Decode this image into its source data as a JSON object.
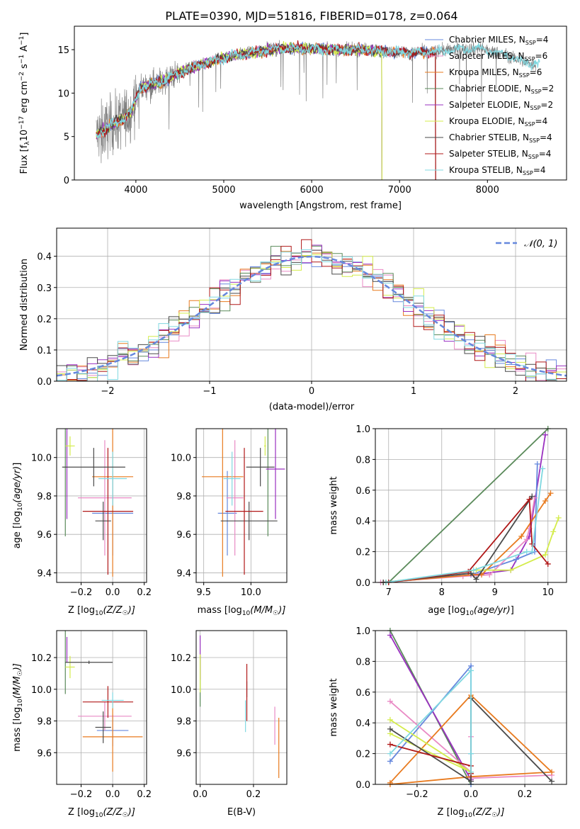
{
  "figure_title": "PLATE=0390, MJD=51816, FIBERID=0178, z=0.064",
  "colors": {
    "Chabrier MILES": "#6688dd",
    "Salpeter MILES": "#e98ac5",
    "Kroupa MILES": "#e87a1e",
    "Chabrier ELODIE": "#5a8a5a",
    "Salpeter ELODIE": "#9a30c0",
    "Kroupa ELODIE": "#d4ec4c",
    "Chabrier STELIB": "#4a4a4a",
    "Salpeter STELIB": "#b01818",
    "Kroupa STELIB": "#80d8e0",
    "data": "#808080",
    "grid": "#b0b0b0"
  },
  "chart_data": [
    {
      "id": "spectrum",
      "type": "line",
      "title": "PLATE=0390, MJD=51816, FIBERID=0178, z=0.064",
      "xlabel": "wavelength [Angstrom, rest frame]",
      "ylabel": "Flux [f_λ 10^-17 erg cm^-2 s^-1 A^-1]",
      "xlim": [
        3300,
        8900
      ],
      "ylim": [
        0,
        17.7
      ],
      "xticks": [
        "4000",
        "5000",
        "6000",
        "7000",
        "8000"
      ],
      "yticks": [
        "0",
        "5",
        "10",
        "15"
      ],
      "grid": false,
      "legend_position": "right",
      "legend": [
        {
          "name": "Chabrier MILES, N_SSP=4",
          "label": "Chabrier MILES, N",
          "sub": "SSP",
          "n": "=4"
        },
        {
          "name": "Salpeter MILES, N_SSP=6",
          "label": "Salpeter MILES, N",
          "sub": "SSP",
          "n": "=6"
        },
        {
          "name": "Kroupa MILES, N_SSP=6",
          "label": "Kroupa MILES, N",
          "sub": "SSP",
          "n": "=6"
        },
        {
          "name": "Chabrier ELODIE, N_SSP=2",
          "label": "Chabrier ELODIE, N",
          "sub": "SSP",
          "n": "=2"
        },
        {
          "name": "Salpeter ELODIE, N_SSP=2",
          "label": "Salpeter ELODIE, N",
          "sub": "SSP",
          "n": "=2"
        },
        {
          "name": "Kroupa ELODIE, N_SSP=4",
          "label": "Kroupa ELODIE, N",
          "sub": "SSP",
          "n": "=4"
        },
        {
          "name": "Chabrier STELIB, N_SSP=4",
          "label": "Chabrier STELIB, N",
          "sub": "SSP",
          "n": "=4"
        },
        {
          "name": "Salpeter STELIB, N_SSP=4",
          "label": "Salpeter STELIB, N",
          "sub": "SSP",
          "n": "=4"
        },
        {
          "name": "Kroupa STELIB, N_SSP=4",
          "label": "Kroupa STELIB, N",
          "sub": "SSP",
          "n": "=4"
        }
      ],
      "continuum": [
        [
          3550,
          5.2
        ],
        [
          3700,
          6.2
        ],
        [
          3850,
          7.0
        ],
        [
          3950,
          8.0
        ],
        [
          4050,
          10.6
        ],
        [
          4300,
          11.4
        ],
        [
          4600,
          12.8
        ],
        [
          4850,
          13.6
        ],
        [
          5100,
          14.3
        ],
        [
          5400,
          14.8
        ],
        [
          5700,
          15.2
        ],
        [
          6000,
          15.1
        ],
        [
          6300,
          15.0
        ],
        [
          6600,
          15.0
        ],
        [
          7000,
          14.7
        ],
        [
          7300,
          14.7
        ],
        [
          7600,
          15.0
        ],
        [
          7900,
          15.2
        ],
        [
          8200,
          14.4
        ],
        [
          8500,
          13.3
        ]
      ],
      "model_ranges": {
        "Chabrier MILES": [
          3550,
          7410
        ],
        "Salpeter MILES": [
          3550,
          7410
        ],
        "Kroupa MILES": [
          3550,
          7410
        ],
        "Chabrier ELODIE": [
          3550,
          6800
        ],
        "Salpeter ELODIE": [
          3550,
          6800
        ],
        "Kroupa ELODIE": [
          3550,
          6800
        ],
        "Chabrier STELIB": [
          3550,
          7410
        ],
        "Salpeter STELIB": [
          3550,
          7410
        ],
        "Kroupa STELIB": [
          3550,
          8600
        ]
      }
    },
    {
      "id": "residual_histogram",
      "type": "histogram",
      "xlabel": "(data-model)/error",
      "ylabel": "Normed distribution",
      "xlim": [
        -2.5,
        2.5
      ],
      "ylim": [
        0,
        0.49
      ],
      "xticks": [
        "−2",
        "−1",
        "0",
        "1",
        "2"
      ],
      "yticks": [
        "0.0",
        "0.1",
        "0.2",
        "0.3",
        "0.4"
      ],
      "grid": true,
      "bin_width": 0.1,
      "reference_curve": {
        "name": "N(0,1)",
        "mu": 0,
        "sigma": 1,
        "legend_label": "𝒩(0, 1)",
        "legend_position": "top-right"
      }
    },
    {
      "id": "age_vs_Z",
      "type": "scatter_errorbar",
      "xlabel": "Z [log10(Z/Z☉)]",
      "ylabel": "age  [log10(age/yr)]",
      "xlim": [
        -0.355,
        0.215
      ],
      "ylim": [
        9.35,
        10.15
      ],
      "xticks": [
        -0.2,
        0.0,
        0.2
      ],
      "xticklabels": [
        "−0.2",
        "0.0",
        "0.2"
      ],
      "yticks": [
        9.4,
        9.6,
        9.8,
        10.0
      ],
      "yticklabels": [
        "9.4",
        "9.6",
        "9.8",
        "10.0"
      ],
      "grid": true,
      "points": [
        {
          "model": "Chabrier MILES",
          "x": 0.0,
          "xerr": 0.13,
          "y": 9.71,
          "yerr": 0.22
        },
        {
          "model": "Salpeter MILES",
          "x": -0.05,
          "xerr": 0.17,
          "y": 9.79,
          "yerr": 0.3
        },
        {
          "model": "Kroupa MILES",
          "x": 0.0,
          "xerr": 0.13,
          "y": 9.9,
          "yerr": 0.52
        },
        {
          "model": "Chabrier ELODIE",
          "x": -0.3,
          "xerr": 0.0,
          "y": 9.94,
          "yerr": 0.35
        },
        {
          "model": "Salpeter ELODIE",
          "x": -0.29,
          "xerr": 0.0,
          "y": 9.94,
          "yerr": 0.26
        },
        {
          "model": "Kroupa ELODIE",
          "x": -0.27,
          "xerr": 0.03,
          "y": 10.06,
          "yerr": 0.05
        },
        {
          "model": "Chabrier STELIB",
          "x": -0.06,
          "xerr": 0.05,
          "y": 9.67,
          "yerr": 0.1
        },
        {
          "model": "Salpeter STELIB",
          "x": -0.03,
          "xerr": 0.16,
          "y": 9.72,
          "yerr": 0.33
        },
        {
          "model": "Kroupa STELIB",
          "x": 0.0,
          "xerr": 0.09,
          "y": 9.89,
          "yerr": 0.14
        },
        {
          "model": "Chabrier STELIB",
          "x": -0.12,
          "xerr": 0.2,
          "y": 9.95,
          "yerr": 0.1
        }
      ]
    },
    {
      "id": "age_vs_mass",
      "type": "scatter_errorbar",
      "xlabel": "mass [log10(M/M☉)]",
      "ylabel": "",
      "xlim": [
        9.42,
        10.38
      ],
      "ylim": [
        9.35,
        10.15
      ],
      "xticks": [
        9.5,
        10.0
      ],
      "xticklabels": [
        "9.5",
        "10.0"
      ],
      "yticks": [
        9.4,
        9.6,
        9.8,
        10.0
      ],
      "yticklabels": [
        "9.4",
        "9.6",
        "9.8",
        "10.0"
      ],
      "grid": true,
      "points": [
        {
          "model": "Chabrier MILES",
          "x": 9.75,
          "xerr": 0.1,
          "y": 9.71,
          "yerr": 0.22
        },
        {
          "model": "Salpeter MILES",
          "x": 9.83,
          "xerr": 0.09,
          "y": 9.79,
          "yerr": 0.3
        },
        {
          "model": "Kroupa MILES",
          "x": 9.7,
          "xerr": 0.22,
          "y": 9.9,
          "yerr": 0.52
        },
        {
          "model": "Chabrier ELODIE",
          "x": 10.18,
          "xerr": 0.0,
          "y": 9.94,
          "yerr": 0.35
        },
        {
          "model": "Salpeter ELODIE",
          "x": 10.26,
          "xerr": 0.1,
          "y": 9.94,
          "yerr": 0.26
        },
        {
          "model": "Kroupa ELODIE",
          "x": 10.15,
          "xerr": 0.01,
          "y": 10.06,
          "yerr": 0.05
        },
        {
          "model": "Chabrier STELIB",
          "x": 9.98,
          "xerr": 0.3,
          "y": 9.67,
          "yerr": 0.1
        },
        {
          "model": "Salpeter STELIB",
          "x": 9.93,
          "xerr": 0.2,
          "y": 9.72,
          "yerr": 0.33
        },
        {
          "model": "Kroupa STELIB",
          "x": 9.8,
          "xerr": 0.09,
          "y": 9.89,
          "yerr": 0.14
        },
        {
          "model": "Chabrier STELIB",
          "x": 10.1,
          "xerr": 0.15,
          "y": 9.95,
          "yerr": 0.1
        }
      ]
    },
    {
      "id": "massweight_vs_age",
      "type": "line",
      "xlabel": "age  [log10(age/yr)]",
      "ylabel": "mass weight",
      "xlim": [
        6.75,
        10.35
      ],
      "ylim": [
        0,
        1.0
      ],
      "xticks": [
        7,
        8,
        9,
        10
      ],
      "xticklabels": [
        "7",
        "8",
        "9",
        "10"
      ],
      "yticks": [
        0,
        0.2,
        0.4,
        0.6,
        0.8,
        1.0
      ],
      "yticklabels": [
        "0.0",
        "0.2",
        "0.4",
        "0.6",
        "0.8",
        "1.0"
      ],
      "grid": true,
      "series": [
        {
          "model": "Chabrier ELODIE",
          "x": [
            7.0,
            10.0
          ],
          "y": [
            0.0,
            1.0
          ]
        },
        {
          "model": "Salpeter ELODIE",
          "x": [
            6.9,
            8.6,
            9.3,
            9.65,
            9.95
          ],
          "y": [
            0.0,
            0.05,
            0.08,
            0.3,
            0.96
          ]
        },
        {
          "model": "Chabrier MILES",
          "x": [
            6.95,
            8.55,
            9.4,
            9.75,
            9.8
          ],
          "y": [
            0.0,
            0.05,
            0.15,
            0.2,
            0.77
          ]
        },
        {
          "model": "Salpeter MILES",
          "x": [
            6.85,
            8.4,
            8.9,
            9.6,
            9.65,
            9.75
          ],
          "y": [
            0.0,
            0.04,
            0.05,
            0.28,
            0.35,
            0.55
          ]
        },
        {
          "model": "Kroupa MILES",
          "x": [
            6.9,
            8.6,
            8.75,
            9.5,
            9.95,
            10.05
          ],
          "y": [
            0.0,
            0.05,
            0.05,
            0.3,
            0.53,
            0.58
          ]
        },
        {
          "model": "Kroupa ELODIE",
          "x": [
            6.95,
            8.65,
            9.3,
            9.95,
            10.1,
            10.2
          ],
          "y": [
            0.0,
            0.08,
            0.08,
            0.18,
            0.33,
            0.42
          ]
        },
        {
          "model": "Chabrier STELIB",
          "x": [
            6.9,
            8.55,
            8.65,
            9.7
          ],
          "y": [
            0.0,
            0.06,
            0.02,
            0.56
          ]
        },
        {
          "model": "Salpeter STELIB",
          "x": [
            7.0,
            8.5,
            9.65,
            9.7,
            10.0
          ],
          "y": [
            0.0,
            0.07,
            0.54,
            0.25,
            0.12
          ]
        },
        {
          "model": "Kroupa STELIB",
          "x": [
            6.95,
            8.6,
            9.6,
            9.7,
            9.9
          ],
          "y": [
            0.0,
            0.08,
            0.2,
            0.2,
            0.74
          ]
        }
      ]
    },
    {
      "id": "mass_vs_Z",
      "type": "scatter_errorbar",
      "xlabel": "Z [log10(Z/Z☉)]",
      "ylabel": "mass [log10(M/M☉)]",
      "xlim": [
        -0.355,
        0.215
      ],
      "ylim": [
        9.4,
        10.37
      ],
      "xticks": [
        -0.2,
        0.0,
        0.2
      ],
      "xticklabels": [
        "−0.2",
        "0.0",
        "0.2"
      ],
      "yticks": [
        9.6,
        9.8,
        10.0,
        10.2
      ],
      "yticklabels": [
        "9.6",
        "9.8",
        "10.0",
        "10.2"
      ],
      "grid": true,
      "points": [
        {
          "model": "Chabrier MILES",
          "x": 0.0,
          "xerr": 0.1,
          "y": 9.74,
          "yerr": 0.1
        },
        {
          "model": "Salpeter MILES",
          "x": -0.05,
          "xerr": 0.17,
          "y": 9.83,
          "yerr": 0.09
        },
        {
          "model": "Kroupa MILES",
          "x": 0.0,
          "xerr": 0.19,
          "y": 9.7,
          "yerr": 0.22
        },
        {
          "model": "Chabrier ELODIE",
          "x": -0.3,
          "xerr": 0.0,
          "y": 10.17,
          "yerr": 0.2
        },
        {
          "model": "Salpeter ELODIE",
          "x": -0.29,
          "xerr": 0.0,
          "y": 10.25,
          "yerr": 0.08
        },
        {
          "model": "Kroupa ELODIE",
          "x": -0.27,
          "xerr": 0.03,
          "y": 10.14,
          "yerr": 0.07
        },
        {
          "model": "Chabrier STELIB",
          "x": -0.06,
          "xerr": 0.05,
          "y": 9.76,
          "yerr": 0.1
        },
        {
          "model": "Salpeter STELIB",
          "x": -0.03,
          "xerr": 0.16,
          "y": 9.92,
          "yerr": 0.1
        },
        {
          "model": "Kroupa STELIB",
          "x": 0.0,
          "xerr": 0.07,
          "y": 9.93,
          "yerr": 0.05
        },
        {
          "model": "Chabrier STELIB",
          "x": -0.15,
          "xerr": 0.15,
          "y": 10.17,
          "yerr": 0.01
        }
      ]
    },
    {
      "id": "mass_vs_EBV",
      "type": "scatter_errorbar",
      "xlabel": "E(B-V)",
      "ylabel": "",
      "xlim": [
        -0.015,
        0.325
      ],
      "ylim": [
        9.4,
        10.37
      ],
      "xticks": [
        0.0,
        0.2
      ],
      "xticklabels": [
        "0.0",
        "0.2"
      ],
      "yticks": [
        9.6,
        9.8,
        10.0,
        10.2
      ],
      "yticklabels": [
        "9.6",
        "9.8",
        "10.0",
        "10.2"
      ],
      "grid": true,
      "points": [
        {
          "model": "Chabrier ELODIE",
          "x": 0.0,
          "xerr": 0.0,
          "y": 10.05,
          "yerr": 0.16
        },
        {
          "model": "Salpeter ELODIE",
          "x": 0.0,
          "xerr": 0.0,
          "y": 10.2,
          "yerr": 0.14
        },
        {
          "model": "Kroupa ELODIE",
          "x": 0.0,
          "xerr": 0.0,
          "y": 10.1,
          "yerr": 0.12
        },
        {
          "model": "Kroupa STELIB",
          "x": 0.17,
          "xerr": 0.0,
          "y": 9.83,
          "yerr": 0.1
        },
        {
          "model": "Chabrier STELIB",
          "x": 0.175,
          "xerr": 0.0,
          "y": 10.0,
          "yerr": 0.05
        },
        {
          "model": "Salpeter STELIB",
          "x": 0.175,
          "xerr": 0.0,
          "y": 9.98,
          "yerr": 0.18
        },
        {
          "model": "Salpeter MILES",
          "x": 0.28,
          "xerr": 0.0,
          "y": 9.77,
          "yerr": 0.12
        },
        {
          "model": "Kroupa MILES",
          "x": 0.295,
          "xerr": 0.0,
          "y": 9.63,
          "yerr": 0.19
        }
      ]
    },
    {
      "id": "massweight_vs_Z",
      "type": "line",
      "xlabel": "Z [log10(Z/Z☉)]",
      "ylabel": "mass weight",
      "xlim": [
        -0.355,
        0.355
      ],
      "ylim": [
        0,
        1.0
      ],
      "xticks": [
        -0.2,
        0.0,
        0.2
      ],
      "xticklabels": [
        "−0.2",
        "0.0",
        "0.2"
      ],
      "yticks": [
        0,
        0.2,
        0.4,
        0.6,
        0.8,
        1.0
      ],
      "yticklabels": [
        "0.0",
        "0.2",
        "0.4",
        "0.6",
        "0.8",
        "1.0"
      ],
      "grid": true,
      "series": [
        {
          "model": "Chabrier ELODIE",
          "x": [
            -0.3,
            0.0
          ],
          "y": [
            1.0,
            0.0
          ]
        },
        {
          "model": "Salpeter ELODIE",
          "x": [
            -0.3,
            0.0
          ],
          "y": [
            0.97,
            0.03
          ]
        },
        {
          "model": "Chabrier MILES",
          "x": [
            -0.3,
            0.0,
            0.0,
            0.0
          ],
          "y": [
            0.15,
            0.77,
            0.2,
            0.0
          ]
        },
        {
          "model": "Salpeter MILES",
          "x": [
            -0.3,
            0.0,
            0.0,
            0.0,
            0.3
          ],
          "y": [
            0.54,
            0.08,
            0.31,
            0.04,
            0.06
          ]
        },
        {
          "model": "Kroupa MILES",
          "x": [
            -0.3,
            0.0,
            0.3,
            0.0,
            -0.3
          ],
          "y": [
            0.01,
            0.58,
            0.08,
            0.05,
            0.0
          ]
        },
        {
          "model": "Kroupa ELODIE",
          "x": [
            -0.3,
            0.0,
            -0.3
          ],
          "y": [
            0.42,
            0.08,
            0.33
          ]
        },
        {
          "model": "Chabrier STELIB",
          "x": [
            -0.3,
            0.0,
            0.0,
            0.3
          ],
          "y": [
            0.36,
            0.02,
            0.56,
            0.02
          ]
        },
        {
          "model": "Salpeter STELIB",
          "x": [
            -0.3,
            0.0,
            0.0
          ],
          "y": [
            0.26,
            0.12,
            0.07
          ]
        },
        {
          "model": "Kroupa STELIB",
          "x": [
            -0.3,
            0.0,
            0.0,
            0.0
          ],
          "y": [
            0.2,
            0.74,
            0.2,
            0.08
          ]
        }
      ]
    }
  ]
}
